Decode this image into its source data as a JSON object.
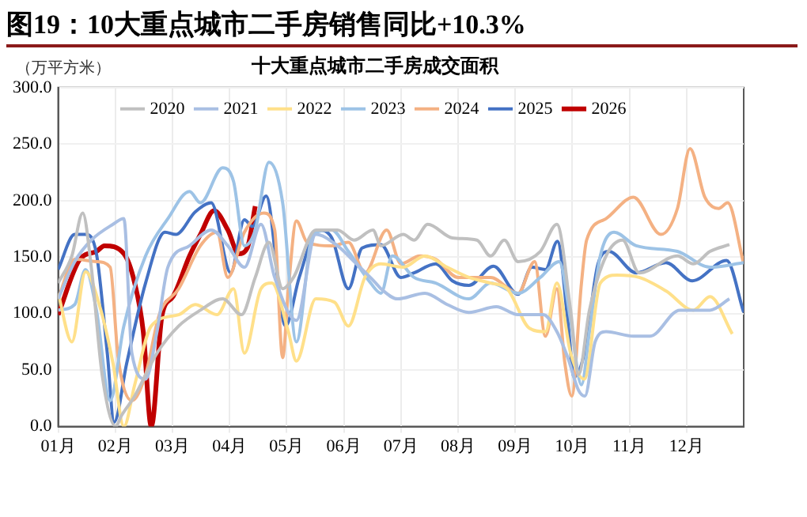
{
  "chart_data": {
    "type": "line",
    "title": "图19：10大重点城市二手房销售同比+10.3%",
    "subtitle": "十大重点城市二手房成交面积",
    "ylabel": "（万平方米）",
    "xlim": [
      1,
      13
    ],
    "xticks": [
      {
        "value": 1,
        "label": "01月"
      },
      {
        "value": 2,
        "label": "02月"
      },
      {
        "value": 3,
        "label": "03月"
      },
      {
        "value": 4,
        "label": "04月"
      },
      {
        "value": 5,
        "label": "05月"
      },
      {
        "value": 6,
        "label": "06月"
      },
      {
        "value": 7,
        "label": "07月"
      },
      {
        "value": 8,
        "label": "08月"
      },
      {
        "value": 9,
        "label": "09月"
      },
      {
        "value": 10,
        "label": "10月"
      },
      {
        "value": 11,
        "label": "11月"
      },
      {
        "value": 12,
        "label": "12月"
      }
    ],
    "ylim": [
      0,
      300
    ],
    "yticks": [
      {
        "value": 0,
        "label": "0.0"
      },
      {
        "value": 50,
        "label": "50.0"
      },
      {
        "value": 100,
        "label": "100.0"
      },
      {
        "value": 150,
        "label": "150.0"
      },
      {
        "value": 200,
        "label": "200.0"
      },
      {
        "value": 250,
        "label": "250.0"
      },
      {
        "value": 300,
        "label": "300.0"
      }
    ],
    "grid": true,
    "legend": "top",
    "line_style": "solid",
    "series": [
      {
        "name": "2020",
        "color": "#c0c0c0",
        "x": [
          1.0,
          1.24,
          1.43,
          1.58,
          1.77,
          2.01,
          2.1,
          2.34,
          2.73,
          3.11,
          3.49,
          3.88,
          4.21,
          4.45,
          4.69,
          4.93,
          5.12,
          5.51,
          5.89,
          6.18,
          6.51,
          6.65,
          7.04,
          7.23,
          7.47,
          7.9,
          8.33,
          8.57,
          8.81,
          9.05,
          9.44,
          9.73,
          9.97,
          10.11,
          10.3,
          10.59,
          10.88,
          11.17,
          11.84,
          12.12,
          12.41,
          12.75
        ],
        "values": [
          127,
          151,
          189,
          141,
          46,
          0,
          9,
          27,
          65,
          89,
          103,
          113,
          99,
          132,
          163,
          122,
          132,
          174,
          174,
          165,
          174,
          160,
          170,
          165,
          179,
          167,
          165,
          151,
          165,
          146,
          155,
          179,
          103,
          46,
          103,
          151,
          165,
          136,
          151,
          144,
          155,
          161
        ]
      },
      {
        "name": "2021",
        "color": "#a9bfe3",
        "x": [
          1.0,
          1.29,
          1.58,
          1.96,
          2.15,
          2.29,
          2.53,
          2.73,
          2.92,
          3.3,
          3.68,
          3.97,
          4.26,
          4.55,
          4.79,
          5.17,
          5.51,
          5.89,
          6.18,
          6.56,
          6.65,
          6.94,
          7.42,
          7.81,
          8.19,
          8.67,
          9.05,
          9.49,
          9.73,
          9.92,
          10.11,
          10.22,
          10.4,
          10.59,
          11.07,
          11.36,
          11.88,
          12.41,
          12.75
        ],
        "values": [
          113,
          146,
          165,
          179,
          184,
          65,
          42,
          84,
          141,
          160,
          174,
          160,
          141,
          179,
          132,
          94,
          170,
          160,
          146,
          127,
          122,
          113,
          118,
          108,
          101,
          106,
          99,
          99,
          84,
          61,
          32,
          27,
          75,
          84,
          80,
          80,
          103,
          103,
          113
        ]
      },
      {
        "name": "2022",
        "color": "#ffe08a",
        "x": [
          1.0,
          1.24,
          1.48,
          1.72,
          1.96,
          2.15,
          2.34,
          2.63,
          3.11,
          3.4,
          3.78,
          4.07,
          4.26,
          4.55,
          4.74,
          5.03,
          5.17,
          5.51,
          5.84,
          6.08,
          6.37,
          6.65,
          7.04,
          7.42,
          7.81,
          8.19,
          8.57,
          8.86,
          9.25,
          9.53,
          9.73,
          9.97,
          10.21,
          10.49,
          10.78,
          11.17,
          11.64,
          12.12,
          12.41,
          12.8
        ],
        "values": [
          118,
          75,
          137,
          108,
          56,
          0,
          37,
          89,
          99,
          108,
          99,
          122,
          65,
          122,
          127,
          84,
          58,
          113,
          110,
          89,
          132,
          144,
          141,
          151,
          141,
          132,
          127,
          122,
          87,
          84,
          127,
          65,
          42,
          127,
          134,
          132,
          120,
          103,
          115,
          82
        ]
      },
      {
        "name": "2023",
        "color": "#9dc3e6",
        "x": [
          1.0,
          1.29,
          1.48,
          1.67,
          1.91,
          2.15,
          2.53,
          2.92,
          3.3,
          3.49,
          3.88,
          4.07,
          4.26,
          4.45,
          4.69,
          4.93,
          5.17,
          5.46,
          5.79,
          6.08,
          6.47,
          6.65,
          6.85,
          7.23,
          7.61,
          8.19,
          8.57,
          9.05,
          9.44,
          9.77,
          9.97,
          10.16,
          10.3,
          10.49,
          10.73,
          11.12,
          11.84,
          12.41,
          13.0
        ],
        "values": [
          103,
          108,
          139,
          103,
          23,
          89,
          151,
          184,
          208,
          198,
          229,
          217,
          160,
          174,
          234,
          198,
          75,
          170,
          174,
          155,
          127,
          118,
          151,
          132,
          127,
          113,
          127,
          118,
          132,
          146,
          94,
          37,
          84,
          151,
          172,
          160,
          155,
          141,
          145
        ]
      },
      {
        "name": "2024",
        "color": "#f4b183",
        "x": [
          1.0,
          1.29,
          1.67,
          1.91,
          2.05,
          2.29,
          2.53,
          2.77,
          3.11,
          3.49,
          3.78,
          3.97,
          4.26,
          4.6,
          4.79,
          4.93,
          5.03,
          5.17,
          5.36,
          5.79,
          6.08,
          6.37,
          6.75,
          7.0,
          7.33,
          7.61,
          8.0,
          8.57,
          9.05,
          9.34,
          9.53,
          9.73,
          9.87,
          9.99,
          10.16,
          10.25,
          10.59,
          11.07,
          11.55,
          11.84,
          12.06,
          12.32,
          12.56,
          12.72,
          13.0
        ],
        "values": [
          113,
          148,
          146,
          141,
          61,
          23,
          46,
          99,
          122,
          160,
          172,
          132,
          172,
          189,
          174,
          61,
          122,
          182,
          163,
          160,
          163,
          136,
          174,
          144,
          151,
          148,
          132,
          132,
          118,
          146,
          80,
          122,
          56,
          27,
          127,
          165,
          184,
          203,
          170,
          193,
          246,
          203,
          193,
          198,
          144
        ]
      },
      {
        "name": "2025",
        "color": "#4472c4",
        "x": [
          1.0,
          1.29,
          1.48,
          1.67,
          1.86,
          1.98,
          2.2,
          2.53,
          2.87,
          3.06,
          3.4,
          3.68,
          4.02,
          4.26,
          4.4,
          4.64,
          4.98,
          5.22,
          5.55,
          5.79,
          6.08,
          6.32,
          6.65,
          7.0,
          7.23,
          7.61,
          7.9,
          8.19,
          8.62,
          9.05,
          9.29,
          9.53,
          9.74,
          9.92,
          10.03,
          10.21,
          10.45,
          10.64,
          11.12,
          11.64,
          12.1,
          12.7,
          13.0
        ],
        "values": [
          139,
          170,
          170,
          153,
          65,
          4,
          56,
          127,
          172,
          170,
          190,
          198,
          136,
          183,
          177,
          204,
          89,
          132,
          174,
          167,
          122,
          158,
          161,
          132,
          136,
          144,
          129,
          125,
          142,
          117,
          141,
          139,
          164,
          94,
          44,
          65,
          144,
          155,
          136,
          145,
          129,
          147,
          101
        ]
      },
      {
        "name": "2026",
        "color": "#c00000",
        "x": [
          1.0,
          1.38,
          1.67,
          1.81,
          2.15,
          2.34,
          2.49,
          2.63,
          2.82,
          3.01,
          3.3,
          3.49,
          3.73,
          3.97,
          4.16,
          4.31,
          4.45
        ],
        "values": [
          99,
          148,
          155,
          160,
          153,
          127,
          84,
          0,
          99,
          115,
          151,
          170,
          191,
          174,
          153,
          158,
          195
        ]
      }
    ]
  }
}
